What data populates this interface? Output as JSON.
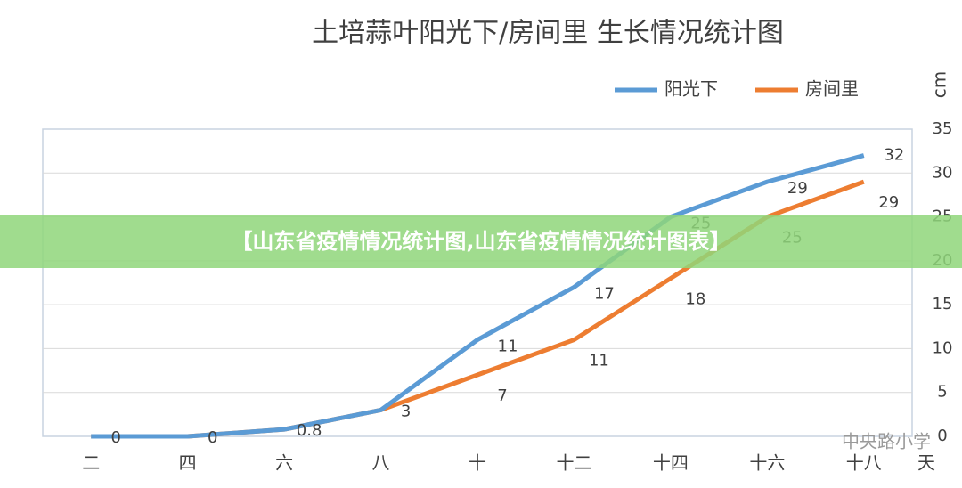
{
  "chart_data": {
    "type": "line",
    "title": "土培蒜叶阳光下/房间里 生长情况统计图",
    "y_label": "cm",
    "x_label": "天",
    "categories": [
      "二",
      "四",
      "六",
      "八",
      "十",
      "十二",
      "十四",
      "十六",
      "十八"
    ],
    "series": [
      {
        "name": "阳光下",
        "color": "#5b9bd5",
        "values": [
          0,
          0,
          0.8,
          3,
          11,
          17,
          25,
          29,
          32
        ]
      },
      {
        "name": "房间里",
        "color": "#ed7d31",
        "values": [
          0,
          0,
          0.8,
          3,
          7,
          11,
          18,
          25,
          29
        ]
      }
    ],
    "ylim": [
      0,
      35
    ],
    "yticks": [
      0,
      5,
      10,
      15,
      20,
      25,
      30,
      35
    ],
    "grid": true,
    "legend": "top-right"
  },
  "banner": "【山东省疫情情况统计图,山东省疫情情况统计图表】",
  "watermark": "中央路小学"
}
